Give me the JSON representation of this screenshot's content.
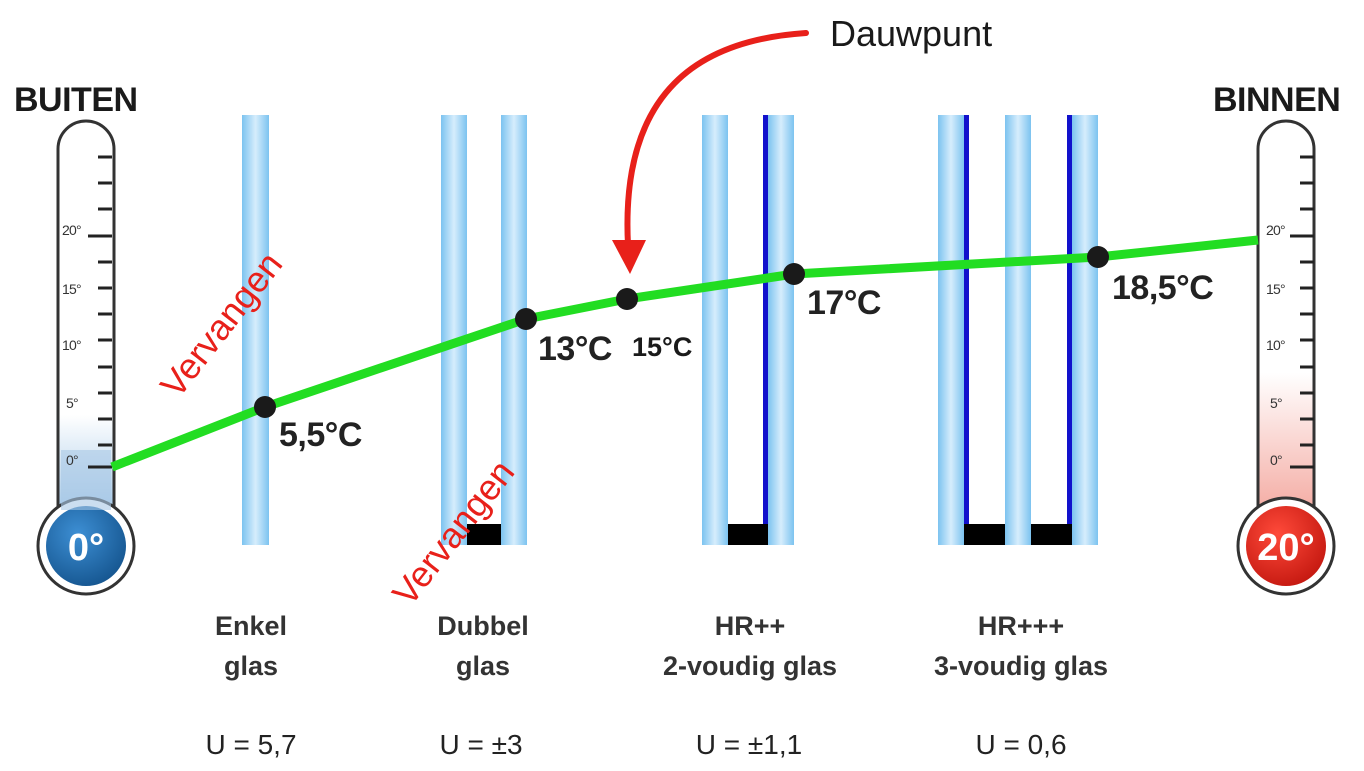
{
  "outside": {
    "label": "BUITEN",
    "bulb": "0°"
  },
  "inside": {
    "label": "BINNEN",
    "bulb": "20°"
  },
  "scale_ticks": [
    "0°",
    "5°",
    "10°",
    "15°",
    "20°"
  ],
  "glass_types": [
    {
      "name_line1": "Enkel",
      "name_line2": "glas",
      "u_value": "U = 5,7"
    },
    {
      "name_line1": "Dubbel",
      "name_line2": "glas",
      "u_value": "U = ±3"
    },
    {
      "name_line1": "HR++",
      "name_line2": "2-voudig glas",
      "u_value": "U = ±1,1"
    },
    {
      "name_line1": "HR+++",
      "name_line2": "3-voudig glas",
      "u_value": "U = 0,6"
    }
  ],
  "temperature_points": [
    {
      "label": "5,5°C",
      "value": 5.5
    },
    {
      "label": "13°C",
      "value": 13
    },
    {
      "label": "15°C",
      "value": 15
    },
    {
      "label": "17°C",
      "value": 17
    },
    {
      "label": "18,5°C",
      "value": 18.5
    }
  ],
  "annotations": {
    "dew_point": "Dauwpunt",
    "replace_1": "Vervangen",
    "replace_2": "Vervangen"
  },
  "colors": {
    "line": "#22dd22",
    "glass": "#9fd3f5",
    "spacer_line": "#1111cc",
    "cold_bulb": "#1e6fb8",
    "warm_bulb": "#e8231a",
    "annotation": "#e8201a"
  }
}
